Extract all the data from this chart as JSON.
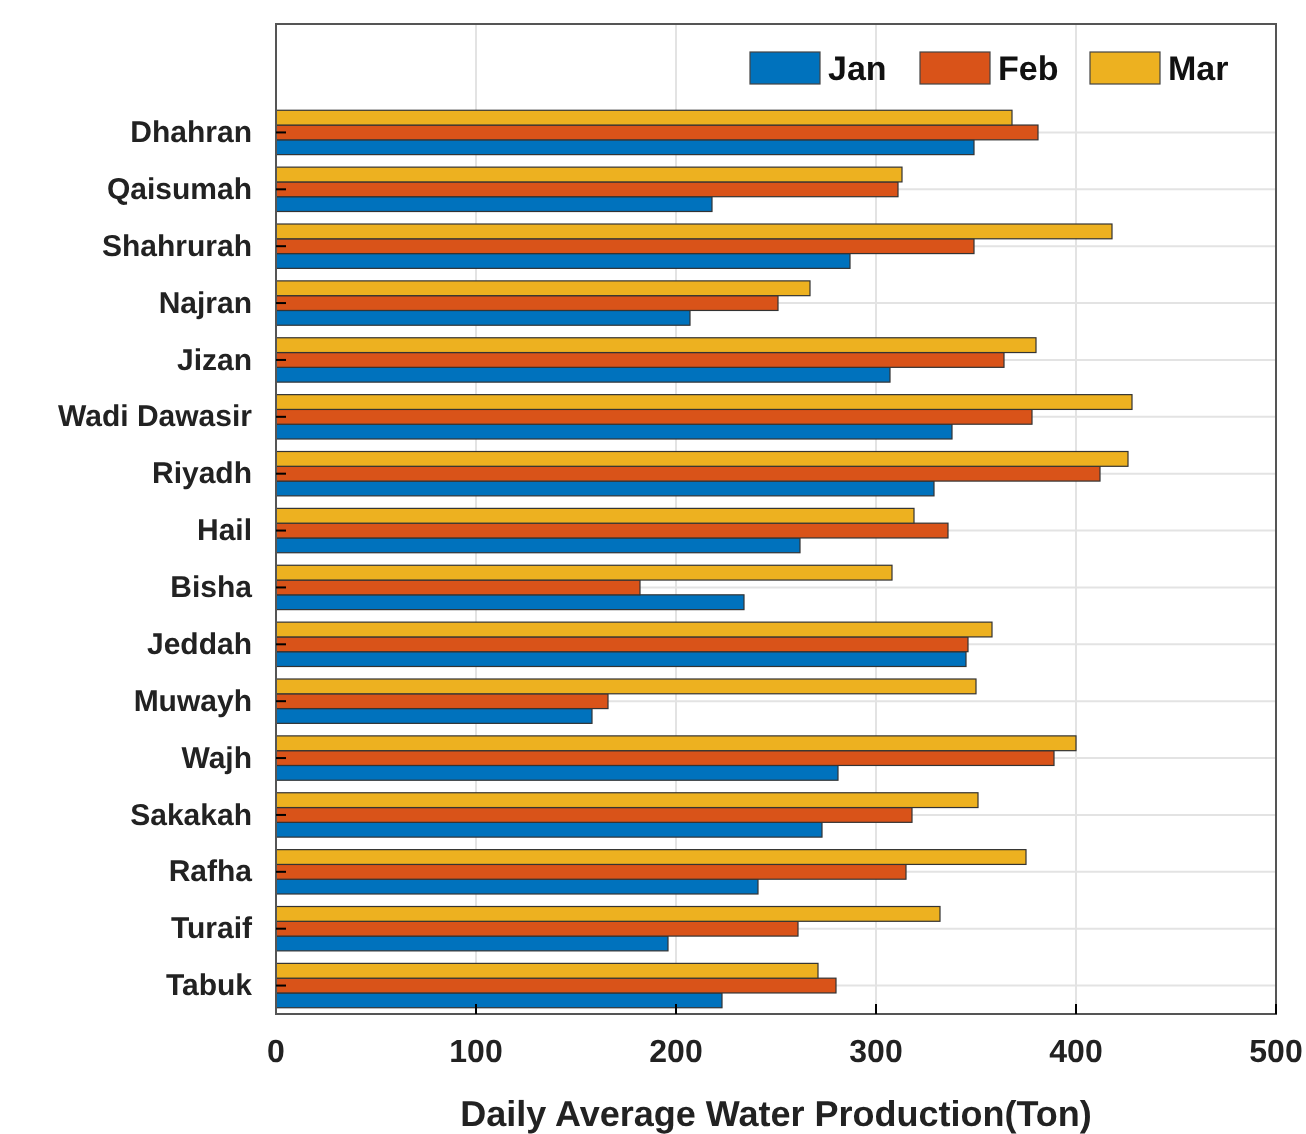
{
  "chart_data": {
    "type": "bar",
    "orientation": "horizontal",
    "xlabel": "Daily Average Water Production(Ton)",
    "categories": [
      "Dhahran",
      "Qaisumah",
      "Shahrurah",
      "Najran",
      "Jizan",
      "Wadi Dawasir",
      "Riyadh",
      "Hail",
      "Bisha",
      "Jeddah",
      "Muwayh",
      "Wajh",
      "Sakakah",
      "Rafha",
      "Turaif",
      "Tabuk"
    ],
    "series": [
      {
        "name": "Jan",
        "color": "#0072bd",
        "values": [
          349,
          218,
          287,
          207,
          307,
          338,
          329,
          262,
          234,
          345,
          158,
          281,
          273,
          241,
          196,
          223
        ]
      },
      {
        "name": "Feb",
        "color": "#d95319",
        "values": [
          381,
          311,
          349,
          251,
          364,
          378,
          412,
          336,
          182,
          346,
          166,
          389,
          318,
          315,
          261,
          280
        ]
      },
      {
        "name": "Mar",
        "color": "#edb120",
        "values": [
          368,
          313,
          418,
          267,
          380,
          428,
          426,
          319,
          308,
          358,
          350,
          400,
          351,
          375,
          332,
          271
        ]
      }
    ],
    "xlim": [
      0,
      500
    ],
    "xticks": [
      0,
      100,
      200,
      300,
      400,
      500
    ],
    "grid": true,
    "legend": "top right"
  }
}
